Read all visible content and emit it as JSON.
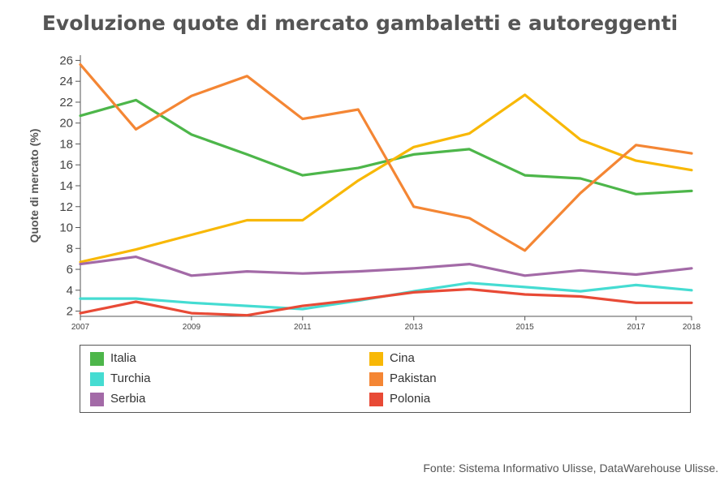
{
  "chart_data": {
    "type": "line",
    "title": "Evoluzione quote di mercato gambaletti e autoreggenti",
    "xlabel": "",
    "ylabel": "Quote di mercato (%)",
    "x": [
      2007,
      2008,
      2009,
      2010,
      2011,
      2012,
      2013,
      2014,
      2015,
      2016,
      2017,
      2018
    ],
    "x_ticks": [
      "2007",
      "2009",
      "2011",
      "2013",
      "2015",
      "2017",
      "2018"
    ],
    "y_ticks": [
      "2",
      "4",
      "6",
      "8",
      "10",
      "12",
      "14",
      "16",
      "18",
      "20",
      "22",
      "24",
      "26"
    ],
    "xlim": [
      2007,
      2018
    ],
    "ylim": [
      1.5,
      26.5
    ],
    "grid": false,
    "legend_position": "bottom",
    "series": [
      {
        "name": "Italia",
        "color": "#4db64a",
        "values": [
          20.7,
          22.2,
          18.9,
          17.0,
          15.0,
          15.7,
          17.0,
          17.5,
          15.0,
          14.7,
          13.2,
          13.5
        ]
      },
      {
        "name": "Cina",
        "color": "#f8b806",
        "values": [
          6.7,
          7.9,
          9.3,
          10.7,
          10.7,
          14.5,
          17.7,
          19.0,
          22.7,
          18.4,
          16.4,
          15.5
        ]
      },
      {
        "name": "Turchia",
        "color": "#45dcd2",
        "values": [
          3.2,
          3.2,
          2.8,
          2.5,
          2.2,
          3.0,
          3.9,
          4.7,
          4.3,
          3.9,
          4.5,
          4.0
        ]
      },
      {
        "name": "Pakistan",
        "color": "#f48634",
        "values": [
          25.6,
          19.4,
          22.6,
          24.5,
          20.4,
          21.3,
          12.0,
          10.9,
          7.8,
          13.3,
          17.9,
          17.1
        ]
      },
      {
        "name": "Serbia",
        "color": "#a36aa7",
        "values": [
          6.5,
          7.2,
          5.4,
          5.8,
          5.6,
          5.8,
          6.1,
          6.5,
          5.4,
          5.9,
          5.5,
          6.1
        ]
      },
      {
        "name": "Polonia",
        "color": "#e84a36",
        "values": [
          1.8,
          2.9,
          1.8,
          1.6,
          2.5,
          3.1,
          3.8,
          4.1,
          3.6,
          3.4,
          2.8,
          2.8
        ]
      }
    ]
  },
  "legend": [
    {
      "name": "Italia",
      "color": "#4db64a"
    },
    {
      "name": "Cina",
      "color": "#f8b806"
    },
    {
      "name": "Turchia",
      "color": "#45dcd2"
    },
    {
      "name": "Pakistan",
      "color": "#f48634"
    },
    {
      "name": "Serbia",
      "color": "#a36aa7"
    },
    {
      "name": "Polonia",
      "color": "#e84a36"
    }
  ],
  "source": "Fonte: Sistema Informativo Ulisse, DataWarehouse Ulisse."
}
